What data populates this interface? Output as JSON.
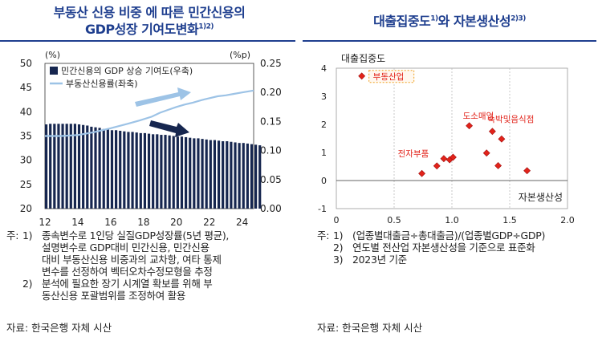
{
  "left": {
    "title_line1": "부동산 신용 비중 에 따른 민간신용의",
    "title_line2": "GDP성장 기여도변화",
    "title_sup": "1)2)",
    "notes_lead": "주:",
    "notes": [
      {
        "num": "1)",
        "lines": [
          "종속변수로 1인당 실질GDP성장률(5년 평균),",
          "설명변수로 GDP대비 민간신용, 민간신용",
          "대비 부동산신용 비중과의 교차항, 여타 통제",
          "변수를 선정하여 벡터오차수정모형을 추정"
        ]
      },
      {
        "num": "2)",
        "lines": [
          "분석에 필요한 장기 시계열 확보를 위해 부",
          "동산신용 포괄범위를 조정하여 활용"
        ]
      }
    ],
    "source": "자료: 한국은행 자체 시산"
  },
  "right": {
    "title": "대출집중도",
    "title_sup1": "1)",
    "title_mid": "와 자본생산성",
    "title_sup2": "2)3)",
    "notes_lead": "주:",
    "notes": [
      {
        "num": "1)",
        "lines": [
          "(업종별대출금÷총대출금)/(업종별GDP÷GDP)"
        ]
      },
      {
        "num": "2)",
        "lines": [
          "연도별 전산업 자본생산성을 기준으로 표준화"
        ]
      },
      {
        "num": "3)",
        "lines": [
          "2023년 기준"
        ]
      }
    ],
    "source": "자료: 한국은행 자체 시산"
  },
  "chart_data": [
    {
      "type": "bar",
      "title": "",
      "left_axis": {
        "unit": "(%)",
        "ylim": [
          20,
          50
        ],
        "ticks": [
          "20",
          "25",
          "30",
          "35",
          "40",
          "45",
          "50"
        ]
      },
      "right_axis": {
        "unit": "(%p)",
        "ylim": [
          0.0,
          0.25
        ],
        "ticks": [
          "0.00",
          "0.05",
          "0.10",
          "0.15",
          "0.20",
          "0.25"
        ]
      },
      "xlim": [
        12,
        24.7
      ],
      "x_ticks": [
        "12",
        "14",
        "16",
        "18",
        "20",
        "22",
        "24"
      ],
      "series": [
        {
          "name": "민간신용의 GDP 상승 기여도(우축)",
          "kind": "bar",
          "axis": "right",
          "color": "#16264f",
          "x_start": 12,
          "x_step": 0.25,
          "values": [
            0.145,
            0.146,
            0.146,
            0.146,
            0.146,
            0.146,
            0.146,
            0.146,
            0.145,
            0.144,
            0.143,
            0.141,
            0.14,
            0.139,
            0.137,
            0.136,
            0.135,
            0.135,
            0.134,
            0.133,
            0.132,
            0.132,
            0.131,
            0.13,
            0.13,
            0.129,
            0.128,
            0.128,
            0.127,
            0.127,
            0.126,
            0.125,
            0.124,
            0.124,
            0.123,
            0.122,
            0.121,
            0.121,
            0.12,
            0.119,
            0.118,
            0.118,
            0.117,
            0.116,
            0.116,
            0.115,
            0.114,
            0.113,
            0.113,
            0.112,
            0.111,
            0.11,
            0.109
          ]
        },
        {
          "name": "부동산신용률(좌축)",
          "kind": "line",
          "axis": "left",
          "color": "#9dc3e6",
          "points": [
            [
              12,
              35.0
            ],
            [
              13,
              35.0
            ],
            [
              14,
              35.2
            ],
            [
              15,
              35.8
            ],
            [
              16,
              36.6
            ],
            [
              17,
              37.5
            ],
            [
              17.75,
              38.2
            ],
            [
              18.5,
              39.0
            ],
            [
              19,
              39.8
            ],
            [
              19.5,
              40.4
            ],
            [
              20,
              41.0
            ],
            [
              20.5,
              41.5
            ],
            [
              21,
              41.9
            ],
            [
              21.5,
              42.4
            ],
            [
              22,
              42.8
            ],
            [
              22.5,
              43.2
            ],
            [
              23,
              43.4
            ],
            [
              23.5,
              43.7
            ],
            [
              24,
              44.0
            ],
            [
              24.7,
              44.4
            ]
          ]
        }
      ],
      "legend_position": "top-left",
      "annotations": [
        "rising light-blue arrow",
        "falling dark-navy arrow"
      ]
    },
    {
      "type": "scatter",
      "title": "",
      "xlabel": "자본생산성",
      "ylabel": "대출집중도",
      "xlim": [
        0,
        2.0
      ],
      "ylim": [
        -1,
        4
      ],
      "x_ticks": [
        "0",
        "0.5",
        "1.0",
        "1.5",
        "2.0"
      ],
      "y_ticks": [
        "-1",
        "0",
        "1",
        "2",
        "3",
        "4"
      ],
      "marker_color": "#e2231a",
      "points": [
        {
          "x": 0.22,
          "y": 3.72,
          "label": "부동산업"
        },
        {
          "x": 0.74,
          "y": 0.25,
          "label": ""
        },
        {
          "x": 0.87,
          "y": 0.52,
          "label": "전자부품"
        },
        {
          "x": 0.93,
          "y": 0.78,
          "label": ""
        },
        {
          "x": 0.98,
          "y": 0.74,
          "label": ""
        },
        {
          "x": 1.01,
          "y": 0.83,
          "label": ""
        },
        {
          "x": 1.15,
          "y": 1.95,
          "label": "도소매업"
        },
        {
          "x": 1.3,
          "y": 0.98,
          "label": ""
        },
        {
          "x": 1.35,
          "y": 1.75,
          "label": "숙박및음식점"
        },
        {
          "x": 1.4,
          "y": 0.53,
          "label": ""
        },
        {
          "x": 1.43,
          "y": 1.48,
          "label": ""
        },
        {
          "x": 1.65,
          "y": 0.35,
          "label": ""
        }
      ],
      "grid": "vertical dashed"
    }
  ]
}
